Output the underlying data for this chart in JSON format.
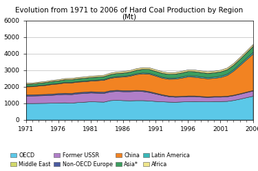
{
  "title": "Evolution from 1971 to 2006 of Hard Coal Production by Region\n(Mt)",
  "years": [
    1971,
    1972,
    1973,
    1974,
    1975,
    1976,
    1977,
    1978,
    1979,
    1980,
    1981,
    1982,
    1983,
    1984,
    1985,
    1986,
    1987,
    1988,
    1989,
    1990,
    1991,
    1992,
    1993,
    1994,
    1995,
    1996,
    1997,
    1998,
    1999,
    2000,
    2001,
    2002,
    2003,
    2004,
    2005,
    2006
  ],
  "xticks": [
    1971,
    1976,
    1981,
    1986,
    1991,
    1996,
    2001,
    2006
  ],
  "ylim": [
    0,
    6000
  ],
  "yticks": [
    0,
    1000,
    2000,
    3000,
    4000,
    5000,
    6000
  ],
  "series": {
    "OECD": {
      "color": "#5BC8E8",
      "values": [
        1000,
        1000,
        1005,
        1010,
        1020,
        1030,
        1040,
        1020,
        1060,
        1080,
        1110,
        1095,
        1085,
        1175,
        1195,
        1175,
        1165,
        1175,
        1175,
        1155,
        1125,
        1105,
        1085,
        1075,
        1095,
        1110,
        1120,
        1110,
        1100,
        1120,
        1120,
        1130,
        1185,
        1265,
        1355,
        1440
      ]
    },
    "Former USSR": {
      "color": "#B07EC8",
      "values": [
        450,
        455,
        462,
        468,
        478,
        498,
        508,
        518,
        528,
        528,
        528,
        528,
        528,
        528,
        538,
        538,
        548,
        558,
        548,
        508,
        448,
        378,
        328,
        308,
        298,
        308,
        298,
        278,
        268,
        268,
        268,
        278,
        288,
        298,
        308,
        318
      ]
    },
    "Non-OECD Europe": {
      "color": "#4A5BA0",
      "values": [
        68,
        70,
        72,
        72,
        73,
        74,
        74,
        74,
        75,
        76,
        76,
        74,
        72,
        70,
        68,
        66,
        65,
        63,
        61,
        58,
        53,
        48,
        43,
        41,
        40,
        40,
        39,
        38,
        36,
        35,
        34,
        33,
        32,
        31,
        30,
        30
      ]
    },
    "China": {
      "color": "#F28322",
      "values": [
        490,
        492,
        522,
        542,
        582,
        582,
        622,
        632,
        632,
        632,
        642,
        682,
        722,
        752,
        782,
        822,
        872,
        952,
        1012,
        1052,
        1032,
        1002,
        1012,
        1052,
        1102,
        1152,
        1132,
        1112,
        1092,
        1102,
        1152,
        1252,
        1452,
        1702,
        1952,
        2202
      ]
    },
    "Latin America": {
      "color": "#39B8B8",
      "values": [
        25,
        26,
        27,
        28,
        28,
        30,
        30,
        32,
        33,
        35,
        36,
        38,
        40,
        42,
        45,
        47,
        50,
        52,
        55,
        57,
        58,
        60,
        62,
        65,
        67,
        70,
        72,
        73,
        74,
        75,
        78,
        80,
        85,
        90,
        95,
        100
      ]
    },
    "Asia*": {
      "color": "#3C9E5F",
      "values": [
        130,
        135,
        140,
        145,
        150,
        155,
        160,
        165,
        170,
        175,
        180,
        180,
        180,
        185,
        190,
        195,
        200,
        210,
        220,
        230,
        230,
        235,
        235,
        240,
        250,
        260,
        265,
        260,
        255,
        260,
        265,
        270,
        280,
        300,
        330,
        370
      ]
    },
    "Middle East": {
      "color": "#D2D96A",
      "values": [
        2,
        2,
        2,
        2,
        2,
        2,
        2,
        2,
        2,
        2,
        2,
        2,
        2,
        2,
        2,
        2,
        2,
        2,
        2,
        2,
        2,
        2,
        2,
        2,
        2,
        2,
        2,
        2,
        2,
        2,
        2,
        2,
        2,
        2,
        2,
        2
      ]
    },
    "Africa": {
      "color": "#F0E68C",
      "values": [
        60,
        62,
        64,
        65,
        68,
        70,
        72,
        74,
        75,
        78,
        80,
        82,
        83,
        85,
        88,
        90,
        92,
        93,
        95,
        96,
        95,
        93,
        92,
        92,
        93,
        95,
        97,
        96,
        95,
        96,
        97,
        98,
        100,
        102,
        104,
        106
      ]
    }
  },
  "legend_row1": [
    {
      "label": "OECD",
      "color": "#5BC8E8"
    },
    {
      "label": "Middle East",
      "color": "#D2D96A"
    },
    {
      "label": "Former USSR",
      "color": "#B07EC8"
    },
    {
      "label": "Non-OECD Europe",
      "color": "#4A5BA0"
    }
  ],
  "legend_row2": [
    {
      "label": "China",
      "color": "#F28322"
    },
    {
      "label": "Asia*",
      "color": "#3C9E5F"
    },
    {
      "label": "Latin America",
      "color": "#39B8B8"
    },
    {
      "label": "Africa",
      "color": "#F0E68C"
    }
  ],
  "stack_order": [
    "OECD",
    "Former USSR",
    "Non-OECD Europe",
    "China",
    "Latin America",
    "Asia*",
    "Middle East",
    "Africa"
  ]
}
